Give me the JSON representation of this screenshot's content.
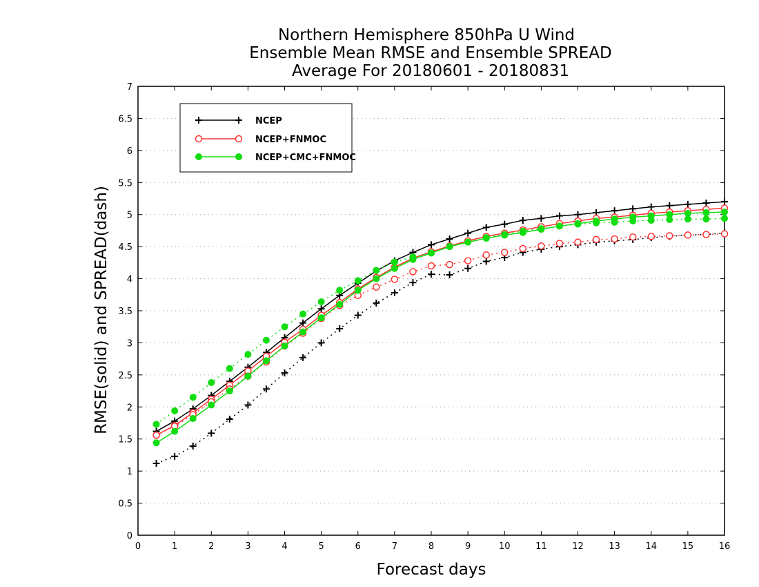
{
  "chart_data": {
    "type": "line",
    "title": [
      "Northern Hemisphere 850hPa U Wind",
      "Ensemble Mean RMSE and Ensemble SPREAD",
      "Average For 20180601 - 20180831"
    ],
    "xlabel": "Forecast days",
    "ylabel": "RMSE(solid) and SPREAD(dash)",
    "xlim": [
      0,
      16
    ],
    "ylim": [
      0,
      7
    ],
    "x_ticks": [
      "0",
      "1",
      "2",
      "3",
      "4",
      "5",
      "6",
      "7",
      "8",
      "9",
      "10",
      "11",
      "12",
      "13",
      "14",
      "15",
      "16"
    ],
    "y_ticks": [
      "0",
      "0.5",
      "1",
      "1.5",
      "2",
      "2.5",
      "3",
      "3.5",
      "4",
      "4.5",
      "5",
      "5.5",
      "6",
      "6.5",
      "7"
    ],
    "grid": true,
    "legend_position": "top-left",
    "x": [
      0.5,
      1,
      1.5,
      2,
      2.5,
      3,
      3.5,
      4,
      4.5,
      5,
      5.5,
      6,
      6.5,
      7,
      7.5,
      8,
      8.5,
      9,
      9.5,
      10,
      10.5,
      11,
      11.5,
      12,
      12.5,
      13,
      13.5,
      14,
      14.5,
      15,
      15.5,
      16
    ],
    "series": [
      {
        "name": "NCEP",
        "color": "#000000",
        "marker": "plus",
        "rmse": [
          1.62,
          1.78,
          1.97,
          2.18,
          2.4,
          2.62,
          2.85,
          3.08,
          3.31,
          3.53,
          3.74,
          3.93,
          4.12,
          4.28,
          4.41,
          4.53,
          4.62,
          4.71,
          4.8,
          4.85,
          4.91,
          4.94,
          4.98,
          5.0,
          5.03,
          5.06,
          5.09,
          5.12,
          5.14,
          5.16,
          5.18,
          5.2
        ],
        "spread": [
          1.12,
          1.23,
          1.39,
          1.59,
          1.81,
          2.03,
          2.28,
          2.53,
          2.77,
          3.0,
          3.22,
          3.43,
          3.62,
          3.78,
          3.94,
          4.07,
          4.06,
          4.16,
          4.27,
          4.33,
          4.41,
          4.46,
          4.5,
          4.53,
          4.57,
          4.59,
          4.61,
          4.64,
          4.66,
          4.68,
          4.69,
          4.71
        ]
      },
      {
        "name": "NCEP+FNMOC",
        "color": "#ff3333",
        "marker": "open-circle",
        "rmse": [
          1.56,
          1.71,
          1.91,
          2.12,
          2.34,
          2.56,
          2.79,
          3.01,
          3.21,
          3.43,
          3.63,
          3.84,
          4.02,
          4.18,
          4.32,
          4.42,
          4.51,
          4.59,
          4.66,
          4.71,
          4.76,
          4.81,
          4.86,
          4.9,
          4.94,
          4.96,
          4.99,
          5.02,
          5.04,
          5.06,
          5.08,
          5.1
        ],
        "spread": [
          1.56,
          1.7,
          1.88,
          2.08,
          2.28,
          2.48,
          2.7,
          2.95,
          3.15,
          3.38,
          3.58,
          3.74,
          3.87,
          3.99,
          4.11,
          4.2,
          4.22,
          4.28,
          4.37,
          4.41,
          4.47,
          4.51,
          4.55,
          4.57,
          4.61,
          4.62,
          4.65,
          4.66,
          4.67,
          4.68,
          4.69,
          4.7
        ]
      },
      {
        "name": "NCEP+CMC+FNMOC",
        "color": "#11dd11",
        "marker": "filled-circle",
        "rmse": [
          1.44,
          1.62,
          1.82,
          2.03,
          2.25,
          2.48,
          2.72,
          2.95,
          3.17,
          3.39,
          3.6,
          3.82,
          4.0,
          4.16,
          4.3,
          4.4,
          4.5,
          4.57,
          4.63,
          4.68,
          4.72,
          4.77,
          4.82,
          4.86,
          4.9,
          4.93,
          4.96,
          4.98,
          5.0,
          5.02,
          5.03,
          5.04
        ],
        "spread": [
          1.73,
          1.94,
          2.15,
          2.38,
          2.6,
          2.82,
          3.04,
          3.25,
          3.45,
          3.64,
          3.82,
          3.97,
          4.13,
          4.26,
          4.34,
          4.4,
          4.5,
          4.57,
          4.64,
          4.69,
          4.74,
          4.78,
          4.82,
          4.85,
          4.87,
          4.88,
          4.9,
          4.91,
          4.92,
          4.93,
          4.93,
          4.94
        ]
      }
    ]
  }
}
